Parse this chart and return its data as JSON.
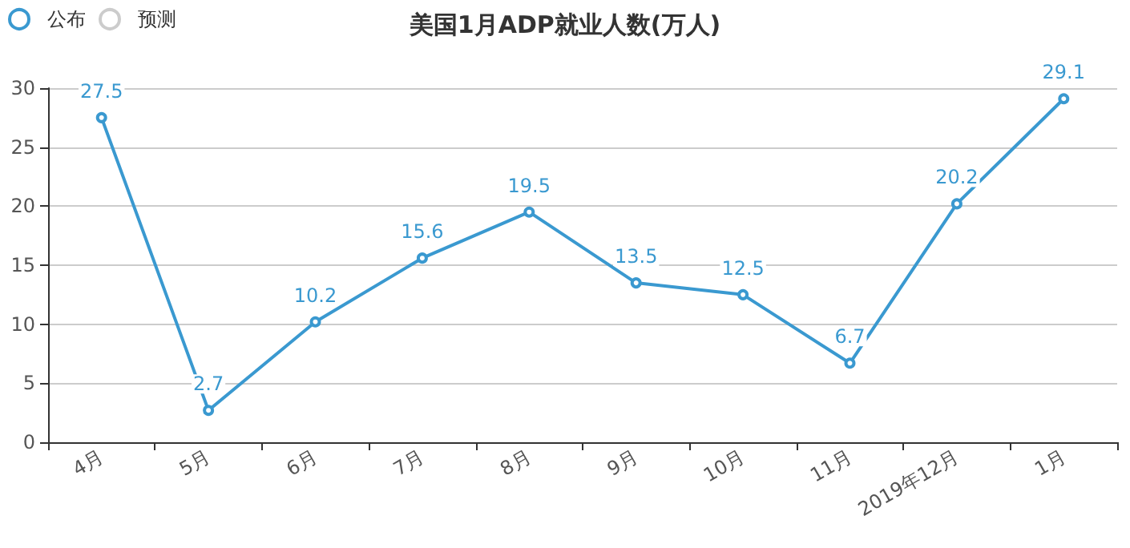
{
  "chart_data": {
    "type": "line",
    "title": "美国1月ADP就业人数(万人)",
    "categories": [
      "4月",
      "5月",
      "6月",
      "7月",
      "8月",
      "9月",
      "10月",
      "11月",
      "2019年12月",
      "1月"
    ],
    "series": [
      {
        "name": "公布",
        "color": "#3a99d0",
        "values": [
          27.5,
          2.7,
          10.2,
          15.6,
          19.5,
          13.5,
          12.5,
          6.7,
          20.2,
          29.1
        ]
      },
      {
        "name": "预测",
        "color": "#cccccc",
        "values": [
          null,
          null,
          null,
          null,
          null,
          null,
          null,
          null,
          null,
          null
        ]
      }
    ],
    "ylim": [
      0,
      30
    ],
    "yticks": [
      0,
      5,
      10,
      15,
      20,
      25,
      30
    ],
    "grid": "y",
    "legend": "top left",
    "marker": "circle",
    "line_style": "solid",
    "data_labels": true
  }
}
